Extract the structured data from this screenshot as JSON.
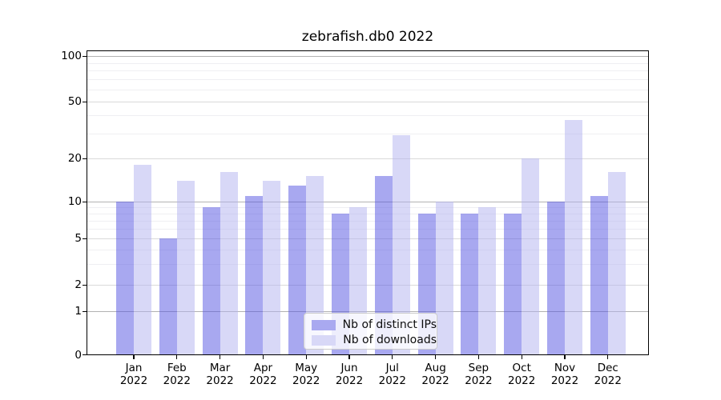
{
  "chart_data": {
    "type": "bar",
    "title": "zebrafish.db0 2022",
    "categories": [
      "Jan",
      "Feb",
      "Mar",
      "Apr",
      "May",
      "Jun",
      "Jul",
      "Aug",
      "Sep",
      "Oct",
      "Nov",
      "Dec"
    ],
    "category_year": "2022",
    "series": [
      {
        "name": "Nb of distinct IPs",
        "color": "#a9a9f0",
        "fill": "rgba(81,81,225,0.5)",
        "values": [
          10,
          5,
          9,
          11,
          13,
          8,
          15,
          8,
          8,
          8,
          10,
          11
        ]
      },
      {
        "name": "Nb of downloads",
        "color": "#d8d8f7",
        "fill": "rgba(177,177,239,0.5)",
        "values": [
          18,
          14,
          16,
          14,
          15,
          9,
          29,
          10,
          9,
          20,
          37,
          16
        ]
      }
    ],
    "yticks": [
      0,
      1,
      2,
      5,
      10,
      20,
      50,
      100
    ],
    "ylim": [
      0,
      110
    ],
    "xlabel": "",
    "ylabel": "",
    "grid": "horizontal log-like (majors at 1,10,100; minors between)",
    "legend_position": "lower center",
    "scale": "log-like with zero baseline"
  },
  "grid_colors": {
    "major": "#b2b2b2",
    "mid": "#dadada",
    "minor": "#efeff2"
  },
  "frame_color": "#000000"
}
